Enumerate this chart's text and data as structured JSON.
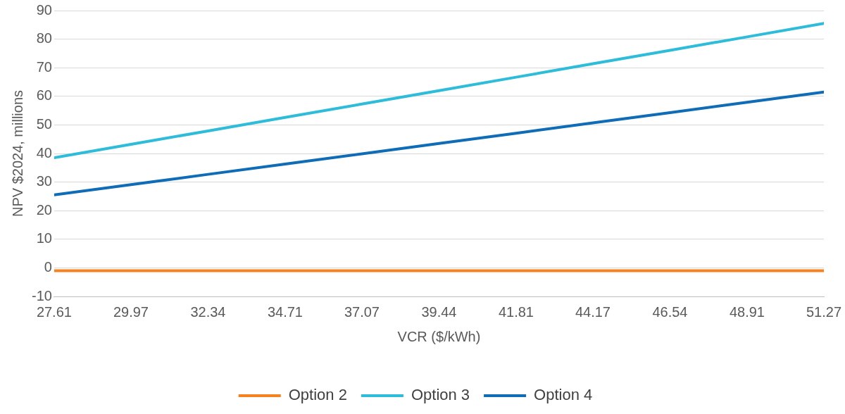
{
  "chart_data": {
    "type": "line",
    "xlabel": "VCR ($/kWh)",
    "ylabel": "NPV $2024, millions",
    "x": [
      27.61,
      29.97,
      32.34,
      34.71,
      37.07,
      39.44,
      41.81,
      44.17,
      46.54,
      48.91,
      51.27
    ],
    "series": [
      {
        "name": "Option 2",
        "color": "#f5821f",
        "values": [
          -1,
          -1,
          -1,
          -1,
          -1,
          -1,
          -1,
          -1,
          -1,
          -1,
          -1
        ]
      },
      {
        "name": "Option 3",
        "color": "#2dbcd9",
        "values": [
          38.5,
          43.2,
          47.9,
          52.6,
          57.3,
          62,
          66.7,
          71.4,
          76.1,
          80.8,
          85.5
        ]
      },
      {
        "name": "Option 4",
        "color": "#0f6cb6",
        "values": [
          25.5,
          29.1,
          32.7,
          36.3,
          39.9,
          43.5,
          47.1,
          50.7,
          54.3,
          57.9,
          61.5
        ]
      }
    ],
    "xlim": [
      27.61,
      51.27
    ],
    "xticks": [
      27.61,
      29.97,
      32.34,
      34.71,
      37.07,
      39.44,
      41.81,
      44.17,
      46.54,
      48.91,
      51.27
    ],
    "ylim": [
      -10,
      90
    ],
    "yticks": [
      -10,
      0,
      10,
      20,
      30,
      40,
      50,
      60,
      70,
      80,
      90
    ],
    "grid": "y",
    "legend": "bottom",
    "marker": "none",
    "line_style": "solid"
  }
}
